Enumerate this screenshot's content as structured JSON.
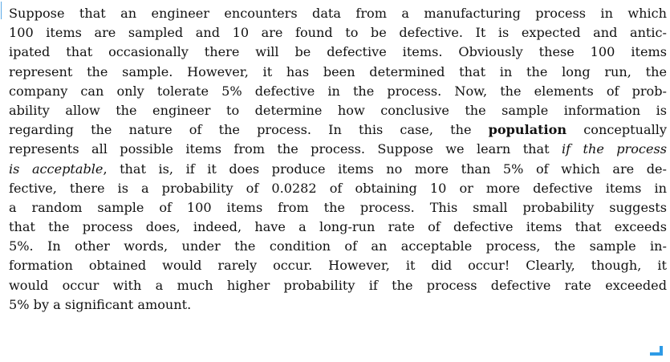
{
  "document": {
    "lines": [
      [
        {
          "text": "Suppose that an engineer encounters data from a manufacturing process in which"
        }
      ],
      [
        {
          "text": "100 items are sampled and 10 are found to be defective. It is expected and antic-"
        }
      ],
      [
        {
          "text": "ipated that occasionally there will be defective items. Obviously these 100 items"
        }
      ],
      [
        {
          "text": "represent the sample. However, it has been determined that in the long run, the"
        }
      ],
      [
        {
          "text": "company can only tolerate 5% defective in the process. Now, the elements of prob-"
        }
      ],
      [
        {
          "text": "ability allow the engineer to determine how conclusive the sample information is"
        }
      ],
      [
        {
          "text": "regarding the nature of the process. In this case, the "
        },
        {
          "text": "population",
          "style": "bold"
        },
        {
          "text": " conceptually"
        }
      ],
      [
        {
          "text": "represents all possible items from the process. Suppose we learn that "
        },
        {
          "text": "if the process",
          "style": "italic"
        }
      ],
      [
        {
          "text": "is acceptable",
          "style": "italic"
        },
        {
          "text": ", that is, if it does produce items no more than 5% of which are de-"
        }
      ],
      [
        {
          "text": "fective, there is a probability of 0.0282 of obtaining 10 or more defective items in"
        }
      ],
      [
        {
          "text": "a random sample of 100 items from the process. This small probability suggests"
        }
      ],
      [
        {
          "text": "that the process does, indeed, have a long-run rate of defective items that exceeds"
        }
      ],
      [
        {
          "text": "5%. In other words, under the condition of an acceptable process, the sample in-"
        }
      ],
      [
        {
          "text": "formation obtained would rarely occur. However, it did occur! Clearly, though, it"
        }
      ],
      [
        {
          "text": "would occur with a much higher probability if the process defective rate exceeded"
        }
      ],
      [
        {
          "text": "5% by a significant amount."
        }
      ]
    ]
  },
  "colors": {
    "text": "#111111",
    "accent": "#2e9be6",
    "left_rule": "#5aa9e6"
  },
  "icons": {
    "end_mark": "blue-corner-bracket"
  }
}
